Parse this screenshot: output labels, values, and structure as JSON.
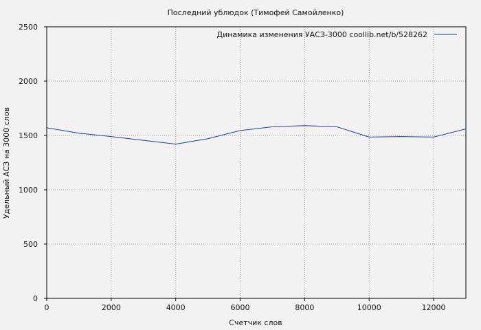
{
  "chart_data": {
    "type": "line",
    "title": "Последний ублюдок (Тимофей Самойленко)",
    "xlabel": "Счетчик слов",
    "ylabel": "Удельный АСЗ на 3000 слов",
    "xlim": [
      0,
      13000
    ],
    "ylim": [
      0,
      2500
    ],
    "xticks": [
      "0",
      "2000",
      "4000",
      "6000",
      "8000",
      "10000",
      "12000"
    ],
    "yticks": [
      "0",
      "500",
      "1000",
      "1500",
      "2000",
      "2500"
    ],
    "grid": true,
    "legend_position": "top-right",
    "series": [
      {
        "name": "Динамика изменения УАСЗ-3000  coollib.net/b/528262",
        "color": "#1f3d99",
        "x": [
          0,
          1000,
          2000,
          3000,
          4000,
          5000,
          6000,
          7000,
          8000,
          9000,
          10000,
          11000,
          12000,
          13000
        ],
        "y": [
          1570,
          1520,
          1490,
          1455,
          1420,
          1470,
          1545,
          1580,
          1590,
          1580,
          1485,
          1490,
          1485,
          1560
        ]
      }
    ]
  }
}
